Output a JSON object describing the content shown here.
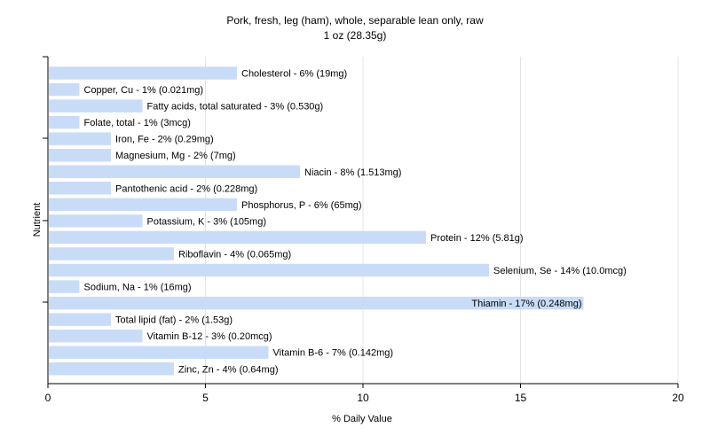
{
  "chart_data": {
    "type": "bar",
    "orientation": "horizontal",
    "title": "Pork, fresh, leg (ham), whole, separable lean only, raw",
    "subtitle": "1 oz (28.35g)",
    "xlabel": "% Daily Value",
    "ylabel": "Nutrient",
    "xlim": [
      0,
      20
    ],
    "xticks": [
      0,
      5,
      10,
      15,
      20
    ],
    "grid": true,
    "bar_color": "#c9dcf7",
    "grid_color": "#e4e4e4",
    "categories": [
      "Cholesterol",
      "Copper, Cu",
      "Fatty acids, total saturated",
      "Folate, total",
      "Iron, Fe",
      "Magnesium, Mg",
      "Niacin",
      "Pantothenic acid",
      "Phosphorus, P",
      "Potassium, K",
      "Protein",
      "Riboflavin",
      "Selenium, Se",
      "Sodium, Na",
      "Thiamin",
      "Total lipid (fat)",
      "Vitamin B-12",
      "Vitamin B-6",
      "Zinc, Zn"
    ],
    "values": [
      6,
      1,
      3,
      1,
      2,
      2,
      8,
      2,
      6,
      3,
      12,
      4,
      14,
      1,
      17,
      2,
      3,
      7,
      4
    ],
    "labels": [
      "Cholesterol - 6% (19mg)",
      "Copper, Cu - 1% (0.021mg)",
      "Fatty acids, total saturated - 3% (0.530g)",
      "Folate, total - 1% (3mcg)",
      "Iron, Fe - 2% (0.29mg)",
      "Magnesium, Mg - 2% (7mg)",
      "Niacin - 8% (1.513mg)",
      "Pantothenic acid - 2% (0.228mg)",
      "Phosphorus, P - 6% (65mg)",
      "Potassium, K - 3% (105mg)",
      "Protein - 12% (5.81g)",
      "Riboflavin - 4% (0.065mg)",
      "Selenium, Se - 14% (10.0mcg)",
      "Sodium, Na - 1% (16mg)",
      "Thiamin - 17% (0.248mg)",
      "Total lipid (fat) - 2% (1.53g)",
      "Vitamin B-12 - 3% (0.20mcg)",
      "Vitamin B-6 - 7% (0.142mg)",
      "Zinc, Zn - 4% (0.64mg)"
    ]
  }
}
